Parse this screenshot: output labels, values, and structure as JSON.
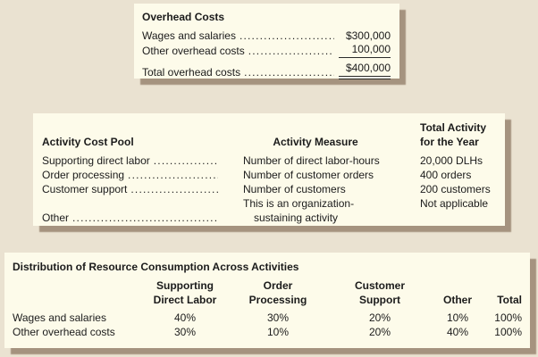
{
  "colors": {
    "background": "#eae2d1",
    "panel": "#fdfbea",
    "shadow": "#a5937f",
    "text": "#1b1b1b"
  },
  "overhead": {
    "title": "Overhead Costs",
    "rows": [
      {
        "label": "Wages and salaries",
        "value": "$300,000"
      },
      {
        "label": "Other overhead costs",
        "value": "100,000"
      },
      {
        "label": "Total overhead costs",
        "value": "$400,000"
      }
    ]
  },
  "activity": {
    "headers": {
      "pool": "Activity Cost Pool",
      "measure": "Activity Measure",
      "total_line1": "Total Activity",
      "total_line2": "for the Year"
    },
    "rows": [
      {
        "pool": "Supporting direct labor",
        "measure": "Number of direct labor-hours",
        "measure2": "",
        "total": "20,000 DLHs"
      },
      {
        "pool": "Order processing",
        "measure": "Number of customer orders",
        "measure2": "",
        "total": "400 orders"
      },
      {
        "pool": "Customer support",
        "measure": "Number of customers",
        "measure2": "",
        "total": "200 customers"
      },
      {
        "pool": "Other",
        "measure": "This is an organization-",
        "measure2": "sustaining activity",
        "total": "Not applicable"
      }
    ]
  },
  "distribution": {
    "title": "Distribution of Resource Consumption Across Activities",
    "col_headers": [
      {
        "line1": "Supporting",
        "line2": "Direct Labor"
      },
      {
        "line1": "Order",
        "line2": "Processing"
      },
      {
        "line1": "Customer",
        "line2": "Support"
      },
      {
        "line1": "Other",
        "line2": ""
      },
      {
        "line1": "Total",
        "line2": ""
      }
    ],
    "rows": [
      {
        "label": "Wages and salaries",
        "values": [
          "40%",
          "30%",
          "20%",
          "10%",
          "100%"
        ]
      },
      {
        "label": "Other overhead costs",
        "values": [
          "30%",
          "10%",
          "20%",
          "40%",
          "100%"
        ]
      }
    ]
  }
}
